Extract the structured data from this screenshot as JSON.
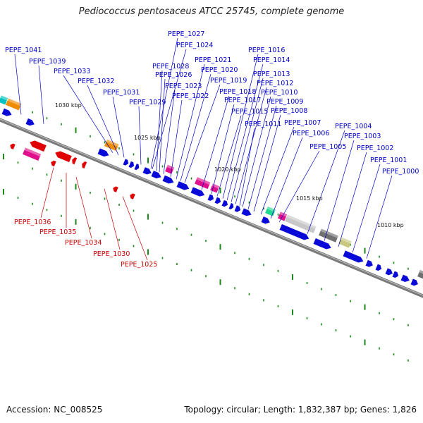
{
  "title": "Pediococcus pentosaceus ATCC 25745, complete genome",
  "accession": "Accession: NC_008525",
  "summary": "Topology: circular; Length: 1,832,387 bp; Genes: 1,826",
  "colors": {
    "forward_label": "#0000c8",
    "reverse_label": "#c80000",
    "forward_gene": "#0a0ad8",
    "reverse_gene": "#e00000",
    "backbone": "#8a8a8a",
    "tick": "#1a8a1a"
  },
  "scale_labels": [
    "1030 kbp",
    "1025 kbp",
    "1020 kbp",
    "1015 kbp",
    "1010 kbp"
  ],
  "forward_labels": [
    "PEPE_1041",
    "PEPE_1039",
    "PEPE_1033",
    "PEPE_1032",
    "PEPE_1031",
    "PEPE_1029",
    "PEPE_1028",
    "PEPE_1027",
    "PEPE_1026",
    "PEPE_1024",
    "PEPE_1023",
    "PEPE_1022",
    "PEPE_1021",
    "PEPE_1020",
    "PEPE_1019",
    "PEPE_1018",
    "PEPE_1017",
    "PEPE_1016",
    "PEPE_1015",
    "PEPE_1014",
    "PEPE_1013",
    "PEPE_1012",
    "PEPE_1011",
    "PEPE_1010",
    "PEPE_1009",
    "PEPE_1008",
    "PEPE_1007",
    "PEPE_1006",
    "PEPE_1005",
    "PEPE_1004",
    "PEPE_1003",
    "PEPE_1002",
    "PEPE_1001",
    "PEPE_1000"
  ],
  "reverse_labels": [
    "PEPE_1036",
    "PEPE_1035",
    "PEPE_1034",
    "PEPE_1030",
    "PEPE_1025"
  ]
}
